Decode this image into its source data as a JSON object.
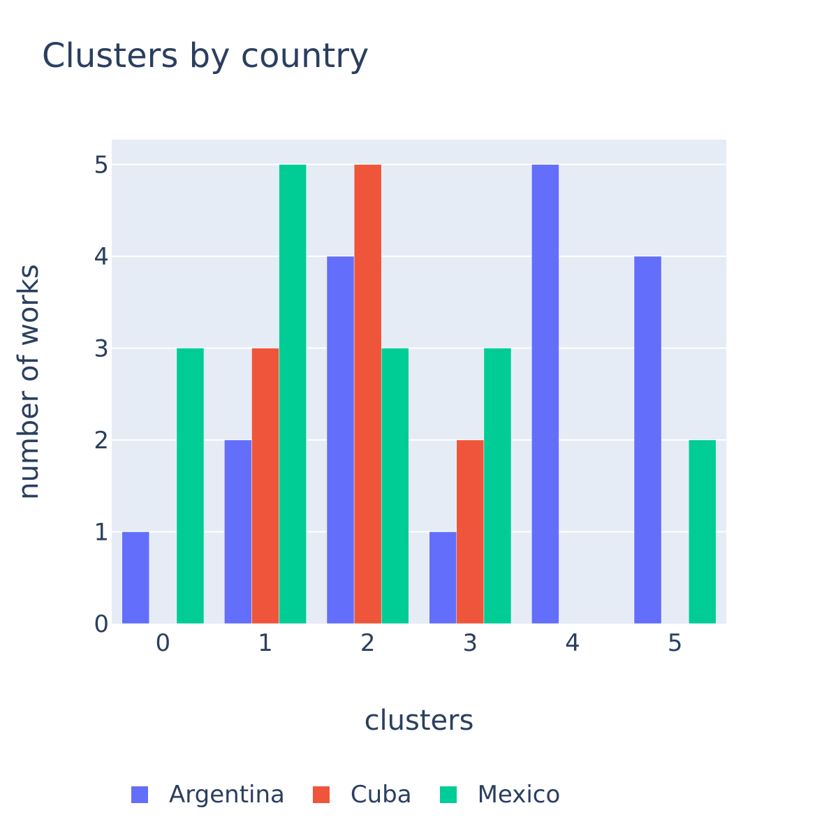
{
  "chart_data": {
    "type": "bar",
    "title": "Clusters by country",
    "xlabel": "clusters",
    "ylabel": "number of works",
    "categories": [
      "0",
      "1",
      "2",
      "3",
      "4",
      "5"
    ],
    "series": [
      {
        "name": "Argentina",
        "color": "#636efa",
        "values": [
          1,
          2,
          4,
          1,
          5,
          4
        ]
      },
      {
        "name": "Cuba",
        "color": "#ef553b",
        "values": [
          0,
          3,
          5,
          2,
          0,
          0
        ]
      },
      {
        "name": "Mexico",
        "color": "#00cc96",
        "values": [
          3,
          5,
          3,
          3,
          0,
          2
        ]
      }
    ],
    "ylim": [
      0,
      5.27
    ],
    "yticks": [
      0,
      1,
      2,
      3,
      4,
      5
    ],
    "grid": true,
    "plot_background": "#e5ecf6",
    "legend_position": "bottom"
  }
}
